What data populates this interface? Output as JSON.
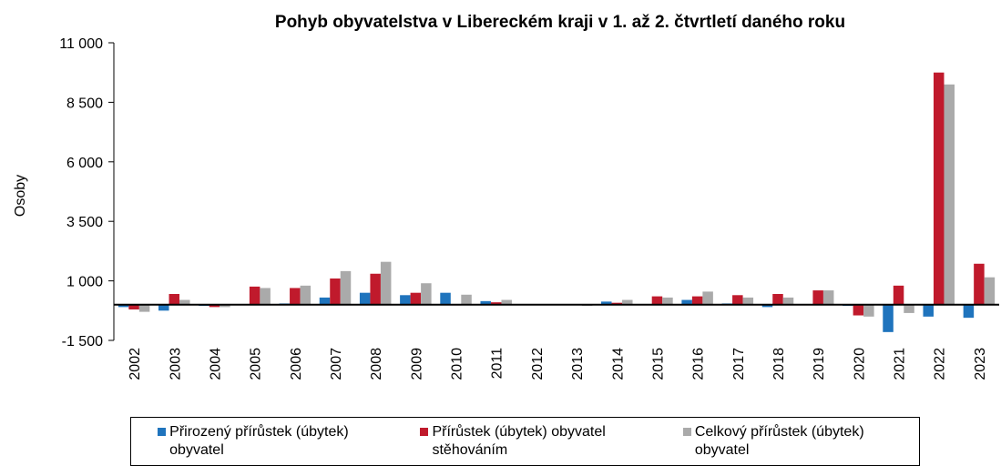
{
  "chart_data": {
    "type": "bar",
    "title": "Pohyb obyvatelstva v Libereckém kraji v 1. až 2. čtvrtletí daného roku",
    "y_label": "Osoby",
    "categories": [
      "2002",
      "2003",
      "2004",
      "2005",
      "2006",
      "2007",
      "2008",
      "2009",
      "2010",
      "2011",
      "2012",
      "2013",
      "2014",
      "2015",
      "2016",
      "2017",
      "2018",
      "2019",
      "2020",
      "2021",
      "2022",
      "2023"
    ],
    "series": [
      {
        "name": "Přirozený přírůstek (úbytek) obyvatel",
        "color": "#1f74bd",
        "values": [
          -100,
          -250,
          -50,
          -20,
          50,
          300,
          500,
          400,
          500,
          150,
          -10,
          -20,
          130,
          20,
          200,
          50,
          -100,
          0,
          -50,
          -1150,
          -500,
          -550
        ]
      },
      {
        "name": "Přírůstek (úbytek) obyvatel stěhováním",
        "color": "#c01a2c",
        "values": [
          -200,
          450,
          -100,
          760,
          700,
          1100,
          1300,
          500,
          -30,
          100,
          0,
          0,
          80,
          350,
          350,
          400,
          450,
          600,
          -450,
          800,
          9750,
          1720
        ]
      },
      {
        "name": "Celkový přírůstek (úbytek) obyvatel",
        "color": "#aaaaaa",
        "values": [
          -300,
          200,
          -100,
          700,
          800,
          1410,
          1800,
          900,
          420,
          200,
          0,
          -50,
          200,
          300,
          550,
          300,
          300,
          600,
          -500,
          -350,
          9250,
          1150
        ]
      }
    ],
    "ylim": [
      -1500,
      11000
    ],
    "yticks": [
      {
        "value": -1500,
        "label": "-1 500"
      },
      {
        "value": 1000,
        "label": "1 000"
      },
      {
        "value": 3500,
        "label": "3 500"
      },
      {
        "value": 6000,
        "label": "6 000"
      },
      {
        "value": 8500,
        "label": "8 500"
      },
      {
        "value": 11000,
        "label": "11 000"
      }
    ],
    "grid": false,
    "legend": "bottom"
  }
}
